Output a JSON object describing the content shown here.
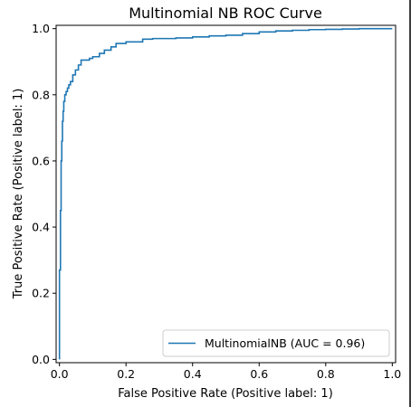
{
  "chart_data": {
    "type": "line",
    "title": "Multinomial NB ROC Curve",
    "xlabel": "False Positive Rate (Positive label: 1)",
    "ylabel": "True Positive Rate (Positive label: 1)",
    "xlim": [
      -0.01,
      1.01
    ],
    "ylim": [
      -0.01,
      1.01
    ],
    "x_ticks": [
      0.0,
      0.2,
      0.4,
      0.6,
      0.8,
      1.0
    ],
    "x_tick_labels": [
      "0.0",
      "0.2",
      "0.4",
      "0.6",
      "0.8",
      "1.0"
    ],
    "y_ticks": [
      0.0,
      0.2,
      0.4,
      0.6,
      0.8,
      1.0
    ],
    "y_tick_labels": [
      "0.0",
      "0.2",
      "0.4",
      "0.6",
      "0.8",
      "1.0"
    ],
    "grid": false,
    "legend_position": "lower-right",
    "series": [
      {
        "name": "MultinomialNB (AUC = 0.96)",
        "color": "#1f77b4",
        "step": true,
        "x": [
          0.0,
          0.0,
          0.003,
          0.005,
          0.007,
          0.009,
          0.011,
          0.013,
          0.016,
          0.02,
          0.024,
          0.028,
          0.033,
          0.04,
          0.048,
          0.057,
          0.065,
          0.075,
          0.09,
          0.1,
          0.12,
          0.135,
          0.155,
          0.17,
          0.2,
          0.25,
          0.28,
          0.35,
          0.4,
          0.45,
          0.5,
          0.55,
          0.6,
          0.65,
          0.7,
          0.75,
          0.8,
          0.85,
          0.9,
          0.95,
          1.0
        ],
        "y": [
          0.0,
          0.27,
          0.45,
          0.6,
          0.66,
          0.72,
          0.75,
          0.78,
          0.8,
          0.81,
          0.82,
          0.83,
          0.84,
          0.86,
          0.875,
          0.89,
          0.905,
          0.905,
          0.91,
          0.915,
          0.925,
          0.935,
          0.945,
          0.955,
          0.96,
          0.968,
          0.97,
          0.972,
          0.975,
          0.978,
          0.98,
          0.985,
          0.99,
          0.993,
          0.995,
          0.997,
          0.998,
          0.999,
          1.0,
          1.0,
          1.0
        ]
      }
    ]
  }
}
